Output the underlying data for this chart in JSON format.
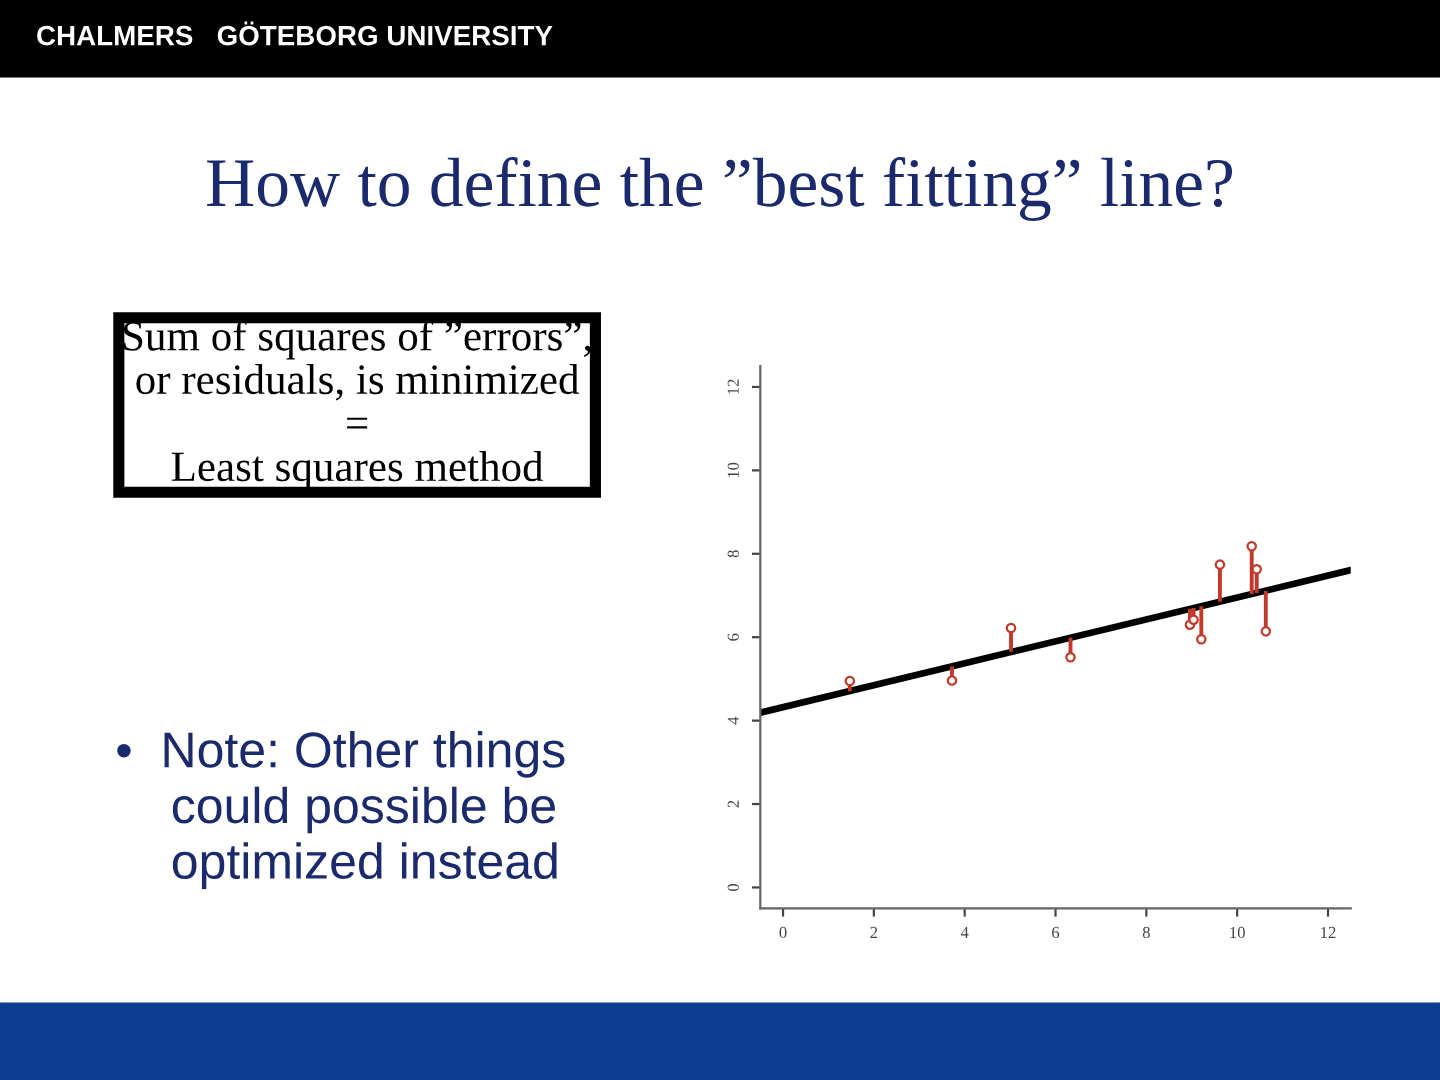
{
  "chart_data": {
    "type": "scatter",
    "title": "How to define the ”best fitting” line?",
    "annotations": [
      "CHALMERS   GÖTEBORG UNIVERSITY",
      "Sum of squares of ”errors”,\nor residuals, is minimized\n=\nLeast squares method",
      "•  Note: Other things\n    could possible be\n    optimized instead"
    ],
    "series": [
      {
        "type": "scatter",
        "color": "#c0392b",
        "marker": "circle",
        "x": [
          1.47,
          3.72,
          5.02,
          6.33,
          8.96,
          9.04,
          9.21,
          9.62,
          10.32,
          10.43,
          10.63
        ],
        "values": [
          4.95,
          4.96,
          6.22,
          5.52,
          6.3,
          6.42,
          5.95,
          7.74,
          8.18,
          7.63,
          6.14
        ],
        "errors": [
          [
            4.7,
            4.95
          ],
          [
            4.96,
            5.3
          ],
          [
            5.65,
            6.22
          ],
          [
            5.52,
            5.99
          ],
          [
            6.3,
            6.68
          ],
          [
            6.42,
            6.7
          ],
          [
            5.95,
            6.74
          ],
          [
            6.85,
            7.74
          ],
          [
            7.03,
            8.18
          ],
          [
            7.06,
            7.63
          ],
          [
            6.14,
            7.11
          ]
        ]
      },
      {
        "type": "line",
        "color": "#000000",
        "x": [
          -0.5,
          12.5
        ],
        "values": [
          4.19,
          7.61
        ]
      }
    ],
    "xlim": [
      -0.5,
      12.5
    ],
    "ylim": [
      -0.5,
      12.5
    ],
    "xticks": [
      0,
      2,
      4,
      6,
      8,
      10,
      12
    ],
    "yticks": [
      0,
      2,
      4,
      6,
      8,
      10,
      12
    ],
    "grid": false,
    "legend": false
  }
}
